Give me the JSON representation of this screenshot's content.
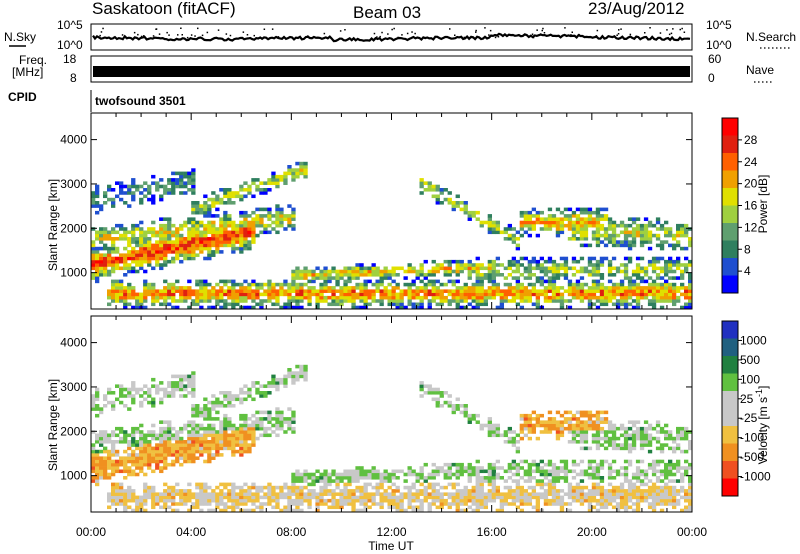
{
  "header": {
    "station": "Saskatoon (fitACF)",
    "beam": "Beam 03",
    "date": "23/Aug/2012"
  },
  "top_panels": {
    "nsky_label": "N.Sky",
    "nsky_ticks": [
      "10^5",
      "10^0"
    ],
    "nsearch_label": "N.Search",
    "nsearch_ticks": [
      "10^5",
      "10^0"
    ],
    "freq_label_1": "Freq.",
    "freq_label_2": "[MHz]",
    "freq_ticks": [
      "18",
      "8"
    ],
    "nave_label": "Nave",
    "nave_ticks": [
      "60",
      "0"
    ],
    "cpid_label": "CPID",
    "cpid_value": "twofsound 3501"
  },
  "colors": {
    "power_scale": [
      "#0000ff",
      "#1f4fd0",
      "#2f7f5f",
      "#5f9f6f",
      "#9fd040",
      "#e0e000",
      "#f0a000",
      "#ff6000",
      "#e02010",
      "#ff0000"
    ],
    "velocity_scale": [
      "#2030c0",
      "#206080",
      "#208040",
      "#60c040",
      "#c8c8c8",
      "#c8c8c8",
      "#f0c040",
      "#f09020",
      "#f05020",
      "#ff0000"
    ]
  },
  "chart_data": [
    {
      "type": "heatmap",
      "title": "Power",
      "xlabel": "",
      "ylabel": "Slant Range [km]",
      "xlim": [
        "00:00",
        "00:00"
      ],
      "ylim": [
        180,
        4600
      ],
      "y_ticks": [
        "1000",
        "2000",
        "3000",
        "4000"
      ],
      "colorbar": {
        "label": "Power [dB]",
        "range": [
          0,
          32
        ],
        "ticks": [
          "4",
          "8",
          "12",
          "16",
          "20",
          "24",
          "28"
        ]
      }
    },
    {
      "type": "heatmap",
      "title": "Velocity",
      "xlabel": "Time UT",
      "ylabel": "Slant Range [km]",
      "x_ticks": [
        "00:00",
        "04:00",
        "08:00",
        "12:00",
        "16:00",
        "20:00",
        "00:00"
      ],
      "xlim": [
        "00:00",
        "00:00"
      ],
      "ylim": [
        180,
        4600
      ],
      "y_ticks": [
        "1000",
        "2000",
        "3000",
        "4000"
      ],
      "colorbar": {
        "label": "Velocity [m s^-1]",
        "ticks": [
          "1000",
          "500",
          "100",
          "25",
          "-25",
          "-100",
          "-500",
          "-1000"
        ]
      }
    }
  ]
}
